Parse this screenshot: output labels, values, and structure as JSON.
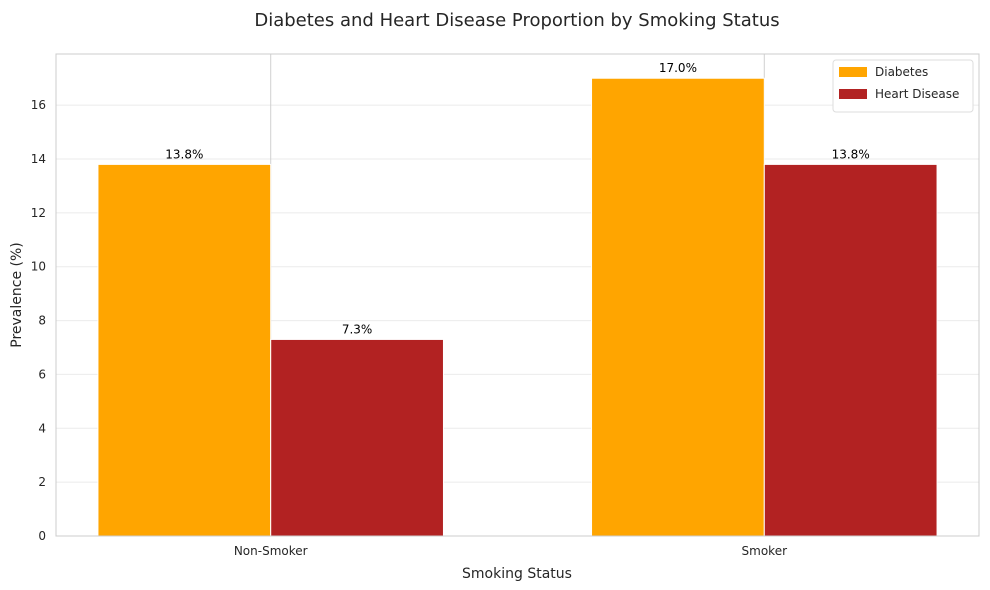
{
  "chart_data": {
    "type": "bar",
    "title": "Diabetes and Heart Disease Proportion by Smoking Status",
    "xlabel": "Smoking Status",
    "ylabel": "Prevalence (%)",
    "categories": [
      "Non-Smoker",
      "Smoker"
    ],
    "series": [
      {
        "name": "Diabetes",
        "values": [
          13.8,
          17.0
        ],
        "labels": [
          "13.8%",
          "17.0%"
        ],
        "color": "#FFA500"
      },
      {
        "name": "Heart Disease",
        "values": [
          7.3,
          13.8
        ],
        "labels": [
          "7.3%",
          "13.8%"
        ],
        "color": "#B22222"
      }
    ],
    "ylim": [
      0,
      17.9
    ],
    "yticks": [
      0,
      2,
      4,
      6,
      8,
      10,
      12,
      14,
      16
    ],
    "grid": true,
    "legend_position": "top-right"
  }
}
